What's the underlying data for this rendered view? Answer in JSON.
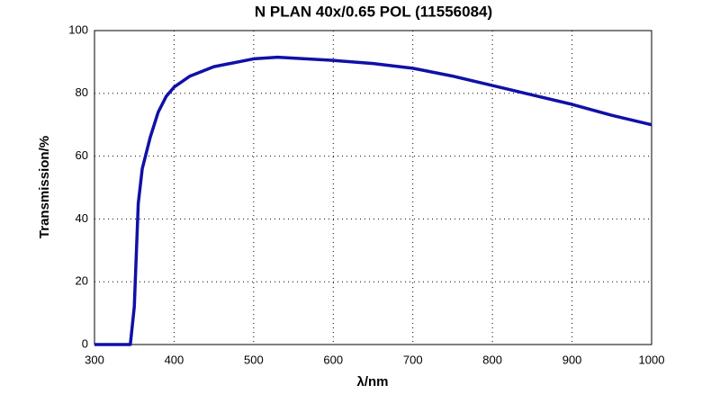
{
  "chart_data": {
    "type": "line",
    "title": "N PLAN 40x/0.65 POL (11556084)",
    "x_label": "λ/nm",
    "y_label": "Transmission/%",
    "x": [
      300,
      345,
      350,
      355,
      360,
      370,
      380,
      390,
      400,
      420,
      450,
      500,
      530,
      600,
      650,
      700,
      750,
      800,
      850,
      900,
      950,
      1000
    ],
    "series": [
      {
        "name": "Transmission",
        "color": "#1010a8",
        "values": [
          0,
          0,
          12,
          45,
          56,
          66,
          74,
          79,
          82,
          85.5,
          88.5,
          91,
          91.5,
          90.5,
          89.5,
          88,
          85.5,
          82.5,
          79.5,
          76.5,
          73,
          70
        ]
      }
    ],
    "xlim": [
      300,
      1000
    ],
    "xticks": [
      300,
      400,
      500,
      600,
      700,
      800,
      900,
      1000
    ],
    "ylim": [
      0,
      100
    ],
    "yticks": [
      0,
      20,
      40,
      60,
      80,
      100
    ],
    "grid": true
  }
}
